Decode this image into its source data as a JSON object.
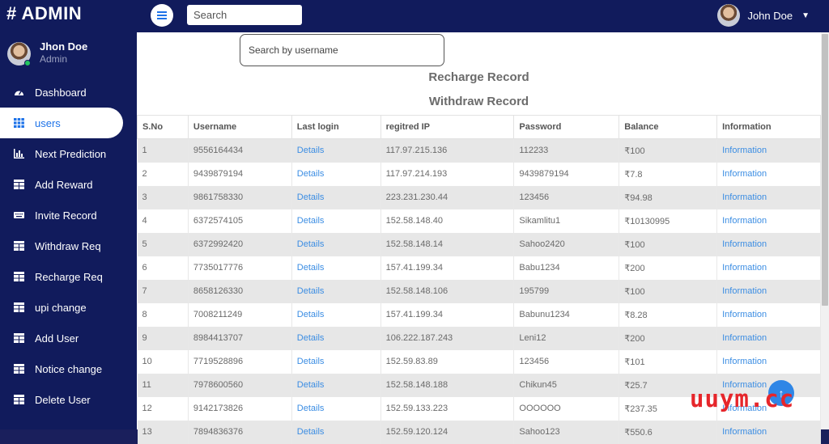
{
  "brand": "# ADMIN",
  "topbar": {
    "search_placeholder": "Search",
    "user_name": "John Doe"
  },
  "sidebar": {
    "profile_name": "Jhon Doe",
    "profile_role": "Admin",
    "items": [
      {
        "label": "Dashboard",
        "icon": "dashboard-icon"
      },
      {
        "label": "users",
        "icon": "grid-icon",
        "active": true
      },
      {
        "label": "Next Prediction",
        "icon": "bar-chart-icon"
      },
      {
        "label": "Add Reward",
        "icon": "table-icon"
      },
      {
        "label": "Invite Record",
        "icon": "keyboard-icon"
      },
      {
        "label": "Withdraw Req",
        "icon": "table-icon"
      },
      {
        "label": "Recharge Req",
        "icon": "table-icon"
      },
      {
        "label": "upi change",
        "icon": "table-icon"
      },
      {
        "label": "Add User",
        "icon": "table-icon"
      },
      {
        "label": "Notice change",
        "icon": "table-icon"
      },
      {
        "label": "Delete User",
        "icon": "table-icon"
      }
    ]
  },
  "main": {
    "search_placeholder": "Search by username",
    "recharge_record": "Recharge Record",
    "withdraw_record": "Withdraw Record",
    "columns": [
      "S.No",
      "Username",
      "Last login",
      "regitred IP",
      "Password",
      "Balance",
      "Information"
    ],
    "rows": [
      [
        "1",
        "9556164434",
        "Details",
        "117.97.215.136",
        "112233",
        "₹100",
        "Information"
      ],
      [
        "2",
        "9439879194",
        "Details",
        "117.97.214.193",
        "9439879194",
        "₹7.8",
        "Information"
      ],
      [
        "3",
        "9861758330",
        "Details",
        "223.231.230.44",
        "123456",
        "₹94.98",
        "Information"
      ],
      [
        "4",
        "6372574105",
        "Details",
        "152.58.148.40",
        "Sikamlitu1",
        "₹10130995",
        "Information"
      ],
      [
        "5",
        "6372992420",
        "Details",
        "152.58.148.14",
        "Sahoo2420",
        "₹100",
        "Information"
      ],
      [
        "6",
        "7735017776",
        "Details",
        "157.41.199.34",
        "Babu1234",
        "₹200",
        "Information"
      ],
      [
        "7",
        "8658126330",
        "Details",
        "152.58.148.106",
        "195799",
        "₹100",
        "Information"
      ],
      [
        "8",
        "7008211249",
        "Details",
        "157.41.199.34",
        "Babunu1234",
        "₹8.28",
        "Information"
      ],
      [
        "9",
        "8984413707",
        "Details",
        "106.222.187.243",
        "Leni12",
        "₹200",
        "Information"
      ],
      [
        "10",
        "7719528896",
        "Details",
        "152.59.83.89",
        "123456",
        "₹101",
        "Information"
      ],
      [
        "11",
        "7978600560",
        "Details",
        "152.58.148.188",
        "Chikun45",
        "₹25.7",
        "Information"
      ],
      [
        "12",
        "9142173826",
        "Details",
        "152.59.133.223",
        "OOOOOO",
        "₹237.35",
        "Information"
      ],
      [
        "13",
        "7894836376",
        "Details",
        "152.59.120.124",
        "Sahoo123",
        "₹550.6",
        "Information"
      ]
    ]
  },
  "fab_icon": "arrow-up-icon",
  "watermark": "uuym.cc",
  "colors": {
    "navbar": "#111b5c",
    "accent": "#1e73e8",
    "link": "#3b8de3",
    "row_stripe": "#e7e7e7",
    "watermark": "#e6262b"
  }
}
